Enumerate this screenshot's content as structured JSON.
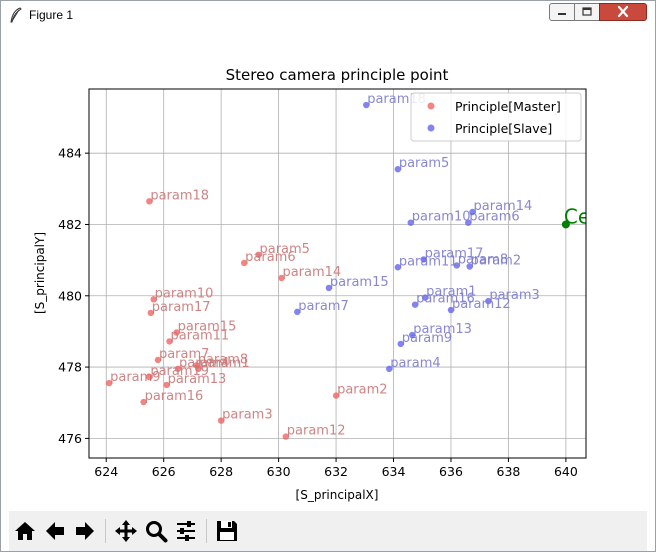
{
  "window": {
    "title": "Figure 1",
    "icons": {
      "app": "feather-icon",
      "minimize": "minimize-icon",
      "maximize": "maximize-icon",
      "close": "close-icon"
    }
  },
  "toolbar": {
    "buttons": [
      {
        "name": "home-button",
        "icon": "home-icon"
      },
      {
        "name": "back-button",
        "icon": "arrow-left-icon"
      },
      {
        "name": "forward-button",
        "icon": "arrow-right-icon"
      },
      {
        "name": "pan-button",
        "icon": "move-icon"
      },
      {
        "name": "zoom-button",
        "icon": "zoom-icon"
      },
      {
        "name": "configure-subplots-button",
        "icon": "sliders-icon"
      },
      {
        "name": "save-button",
        "icon": "save-icon"
      }
    ]
  },
  "chart_data": {
    "type": "scatter",
    "title": "Stereo camera principle point",
    "xlabel": "[S_principalX]",
    "ylabel": "[S_principalY]",
    "xlim": [
      623.4,
      640.7
    ],
    "ylim": [
      475.45,
      485.8
    ],
    "xticks": [
      624,
      626,
      628,
      630,
      632,
      634,
      636,
      638,
      640
    ],
    "yticks": [
      476,
      478,
      480,
      482,
      484
    ],
    "grid": true,
    "legend_position": "top-right",
    "colors": {
      "master": "#f05a5a",
      "slave": "#5a5af0",
      "master_label": "#c87878",
      "slave_label": "#7b7bcc",
      "center": "#008000"
    },
    "series": [
      {
        "name": "Principle[Master]",
        "points": [
          {
            "label": "param1",
            "x": 627.2,
            "y": 477.95
          },
          {
            "label": "param2",
            "x": 632.0,
            "y": 477.2
          },
          {
            "label": "param3",
            "x": 628.0,
            "y": 476.5
          },
          {
            "label": "param4",
            "x": 626.5,
            "y": 477.95
          },
          {
            "label": "param5",
            "x": 629.3,
            "y": 481.15
          },
          {
            "label": "param6",
            "x": 628.8,
            "y": 480.92
          },
          {
            "label": "param7",
            "x": 625.8,
            "y": 478.2
          },
          {
            "label": "param8",
            "x": 627.15,
            "y": 478.05
          },
          {
            "label": "param9",
            "x": 624.1,
            "y": 477.55
          },
          {
            "label": "param10",
            "x": 625.65,
            "y": 479.9
          },
          {
            "label": "param11",
            "x": 626.2,
            "y": 478.72
          },
          {
            "label": "param12",
            "x": 630.25,
            "y": 476.05
          },
          {
            "label": "param13",
            "x": 626.1,
            "y": 477.5
          },
          {
            "label": "param14",
            "x": 630.1,
            "y": 480.5
          },
          {
            "label": "param15",
            "x": 626.45,
            "y": 478.97
          },
          {
            "label": "param16",
            "x": 625.3,
            "y": 477.02
          },
          {
            "label": "param17",
            "x": 625.55,
            "y": 479.52
          },
          {
            "label": "param18",
            "x": 625.5,
            "y": 482.65
          },
          {
            "label": "param19",
            "x": 625.5,
            "y": 477.72
          }
        ]
      },
      {
        "name": "Principle[Slave]",
        "points": [
          {
            "label": "param1",
            "x": 635.1,
            "y": 479.95
          },
          {
            "label": "param2",
            "x": 636.65,
            "y": 480.82
          },
          {
            "label": "param3",
            "x": 637.3,
            "y": 479.85
          },
          {
            "label": "param4",
            "x": 633.85,
            "y": 477.95
          },
          {
            "label": "param5",
            "x": 634.15,
            "y": 483.55
          },
          {
            "label": "param6",
            "x": 636.6,
            "y": 482.05
          },
          {
            "label": "param7",
            "x": 630.65,
            "y": 479.55
          },
          {
            "label": "param8",
            "x": 636.2,
            "y": 480.85
          },
          {
            "label": "param9",
            "x": 634.25,
            "y": 478.65
          },
          {
            "label": "param10",
            "x": 634.6,
            "y": 482.05
          },
          {
            "label": "param11",
            "x": 634.15,
            "y": 480.8
          },
          {
            "label": "param12",
            "x": 636.0,
            "y": 479.6
          },
          {
            "label": "param13",
            "x": 634.65,
            "y": 478.9
          },
          {
            "label": "param14",
            "x": 636.75,
            "y": 482.35
          },
          {
            "label": "param15",
            "x": 631.75,
            "y": 480.22
          },
          {
            "label": "param16",
            "x": 634.75,
            "y": 479.75
          },
          {
            "label": "param17",
            "x": 635.05,
            "y": 481.02
          },
          {
            "label": "param18",
            "x": 633.05,
            "y": 485.35
          }
        ]
      }
    ],
    "center_point": {
      "label": "CenterPoint",
      "x": 640.0,
      "y": 482.0
    }
  }
}
